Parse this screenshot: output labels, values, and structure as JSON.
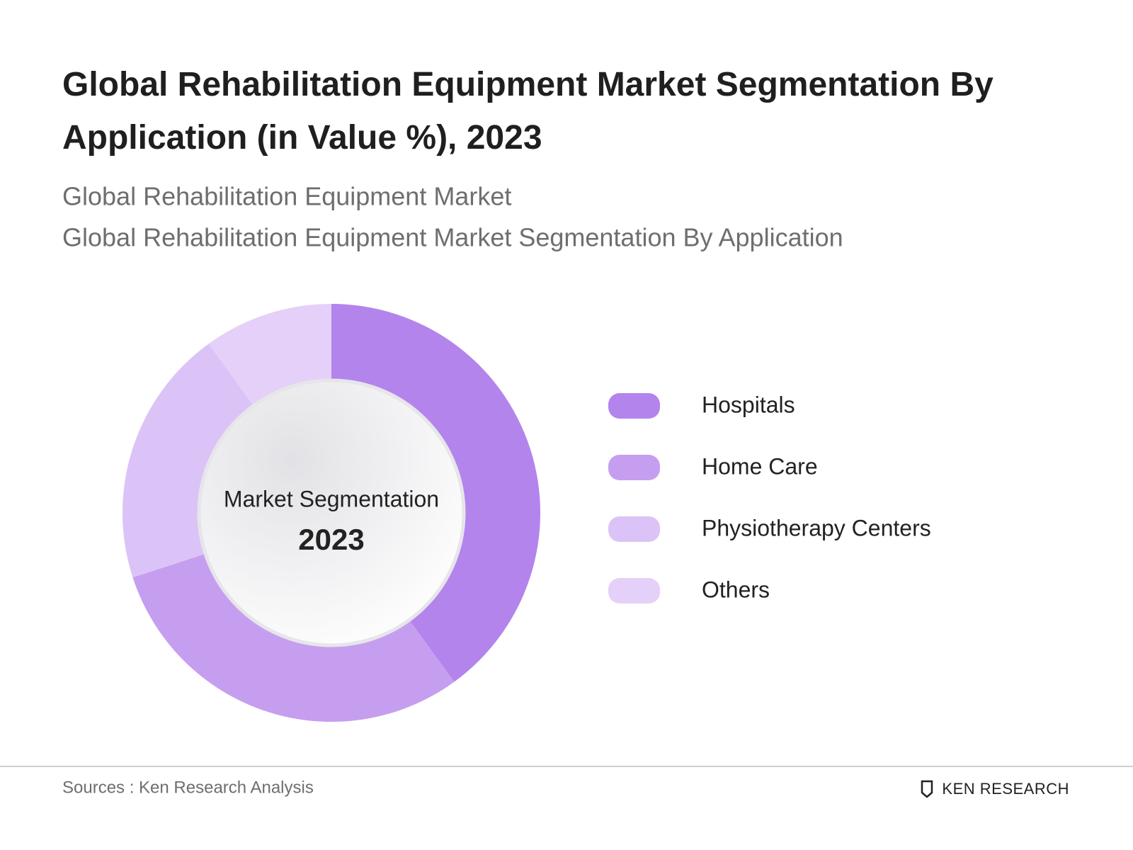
{
  "chart_data": {
    "type": "pie",
    "title": "Global Rehabilitation Equipment Market Segmentation By Application (in Value %), 2023",
    "subtitles": [
      "Global Rehabilitation Equipment Market",
      "Global Rehabilitation Equipment Market Segmentation By Application"
    ],
    "center_label": "Market Segmentation",
    "center_year": "2023",
    "categories": [
      "Hospitals",
      "Home Care",
      "Physiotherapy Centers",
      "Others"
    ],
    "values": [
      40,
      30,
      20,
      10
    ],
    "colors": [
      "#b384ec",
      "#c69ef0",
      "#dbc3f7",
      "#e4d0f8"
    ],
    "legend": "right"
  },
  "footer": {
    "source": "Sources : Ken Research Analysis",
    "logo": "KEN RESEARCH"
  }
}
